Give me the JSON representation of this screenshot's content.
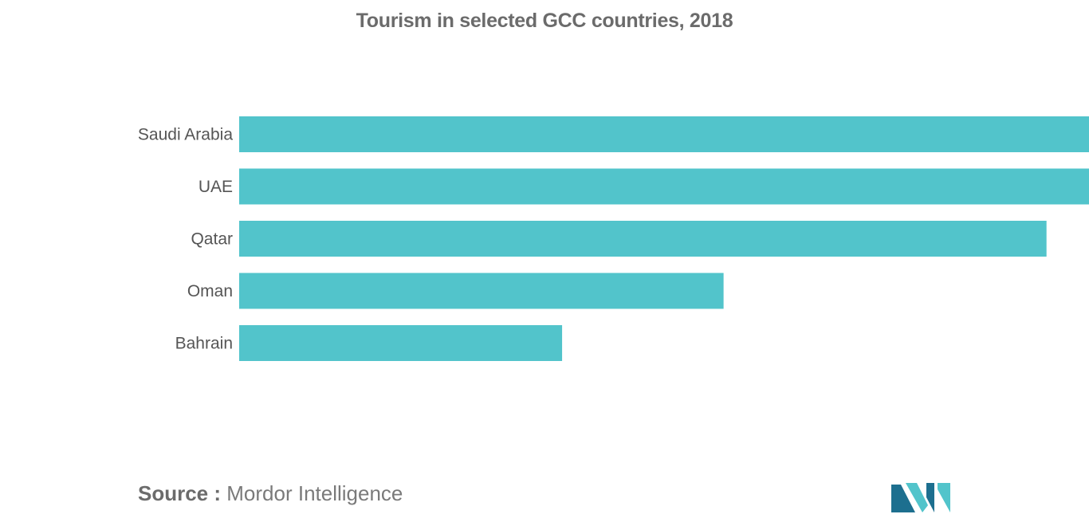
{
  "title": "Tourism in selected GCC countries, 2018",
  "source": {
    "label": "Source :",
    "value": "Mordor Intelligence"
  },
  "colors": {
    "bar": "#52c4cb",
    "logo_dark": "#1d6f8f",
    "logo_light": "#52c4cb"
  },
  "chart_data": {
    "type": "bar",
    "orientation": "horizontal",
    "title": "Tourism in selected GCC countries, 2018",
    "xlabel": "",
    "ylabel": "",
    "categories": [
      "Saudi Arabia",
      "UAE",
      "Qatar",
      "Oman",
      "Bahrain"
    ],
    "values": [
      100,
      100,
      95,
      57,
      38
    ],
    "xlim": [
      0,
      100
    ],
    "grid": false,
    "legend": "none"
  }
}
